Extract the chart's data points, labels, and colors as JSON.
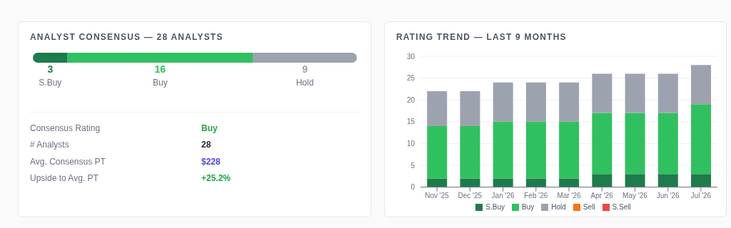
{
  "chart_data": [
    {
      "type": "bar",
      "orientation": "horizontal",
      "stacked": true,
      "title": "ANALYST CONSENSUS — 28 ANALYSTS",
      "categories": [
        null
      ],
      "data_labels": true,
      "series": [
        {
          "name": "S.Buy",
          "color": "#1e7b4b",
          "values": [
            3
          ]
        },
        {
          "name": "Buy",
          "color": "#31c05f",
          "values": [
            16
          ]
        },
        {
          "name": "Hold",
          "color": "#9ca3af",
          "values": [
            9
          ]
        }
      ],
      "annotations": [
        "Consensus Rating",
        "Buy",
        "# Analysts",
        "28",
        "Avg. Consensus PT",
        "$228",
        "Upside to Avg. PT",
        "+25.2%"
      ]
    },
    {
      "type": "bar",
      "stacked": true,
      "title": "RATING TREND — LAST 9 MONTHS",
      "categories": [
        "Nov '25",
        "Dec '25",
        "Jan '26",
        "Feb '26",
        "Mar '26",
        "Apr '26",
        "May '26",
        "Jun '26",
        "Jul '26"
      ],
      "ylim": [
        0,
        30
      ],
      "yticks": [
        0,
        5,
        10,
        15,
        20,
        25,
        30
      ],
      "grid": "y",
      "legend": "bottom",
      "series": [
        {
          "name": "S.Buy",
          "color": "#1e7b4b",
          "values": [
            2,
            2,
            2,
            2,
            2,
            3,
            3,
            3,
            3
          ]
        },
        {
          "name": "Buy",
          "color": "#31c05f",
          "values": [
            12,
            12,
            13,
            13,
            13,
            14,
            14,
            14,
            16
          ]
        },
        {
          "name": "Hold",
          "color": "#9ca3af",
          "values": [
            8,
            8,
            9,
            9,
            9,
            9,
            9,
            9,
            9
          ]
        },
        {
          "name": "Sell",
          "color": "#f97316",
          "values": [
            0,
            0,
            0,
            0,
            0,
            0,
            0,
            0,
            0
          ]
        },
        {
          "name": "S.Sell",
          "color": "#ef4444",
          "values": [
            0,
            0,
            0,
            0,
            0,
            0,
            0,
            0,
            0
          ]
        }
      ]
    }
  ]
}
